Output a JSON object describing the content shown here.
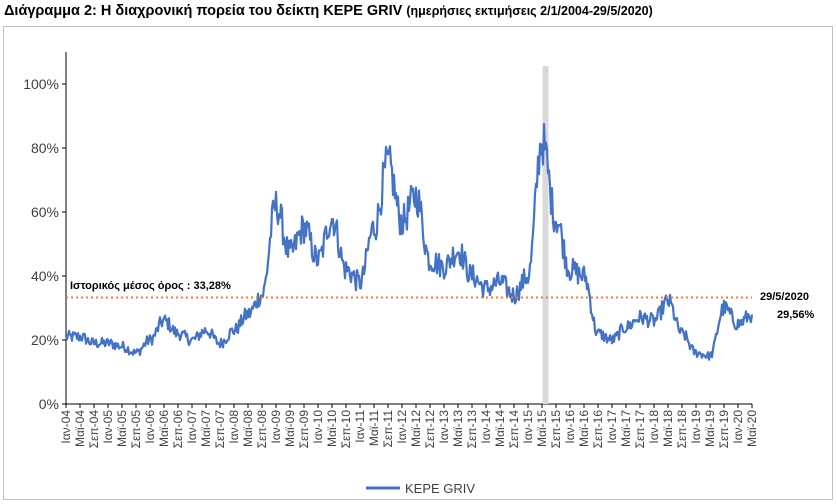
{
  "title": {
    "main": "Διάγραμμα 2: Η διαχρονική πορεία του δείκτη ΚΕΡΕ GRIV",
    "sub": "(ημερήσιες εκτιμήσεις 2/1/2004-29/5/2020)"
  },
  "chart_data": {
    "type": "line",
    "title": "Διάγραμμα 2: Η διαχρονική πορεία του δείκτη ΚΕΡΕ GRIV (ημερήσιες εκτιμήσεις 2/1/2004-29/5/2020)",
    "xlabel": "",
    "ylabel": "",
    "ylim": [
      0,
      110
    ],
    "y_ticks": [
      "0%",
      "20%",
      "40%",
      "60%",
      "80%",
      "100%"
    ],
    "y_tick_values": [
      0,
      20,
      40,
      60,
      80,
      100
    ],
    "x_tick_labels": [
      "Ιαν-04",
      "Μαϊ-04",
      "Σεπ-04",
      "Ιαν-05",
      "Μαϊ-05",
      "Σεπ-05",
      "Ιαν-06",
      "Μαϊ-06",
      "Σεπ-06",
      "Ιαν-07",
      "Μαϊ-07",
      "Σεπ-07",
      "Ιαν-08",
      "Μαϊ-08",
      "Σεπ-08",
      "Ιαν-09",
      "Μαϊ-09",
      "Σεπ-09",
      "Ιαν-10",
      "Μαϊ-10",
      "Σεπ-10",
      "Ιαν-11",
      "Μαϊ-11",
      "Σεπ-11",
      "Ιαν-12",
      "Μαϊ-12",
      "Σεπ-12",
      "Ιαν-13",
      "Μαϊ-13",
      "Σεπ-13",
      "Ιαν-14",
      "Μαϊ-14",
      "Σεπ-14",
      "Ιαν-15",
      "Μαϊ-15",
      "Σεπ-15",
      "Ιαν-16",
      "Μαϊ-16",
      "Σεπ-16",
      "Ιαν-17",
      "Μαϊ-17",
      "Σεπ-17",
      "Ιαν-18",
      "Μαϊ-18",
      "Σεπ-18",
      "Ιαν-19",
      "Μαϊ-19",
      "Σεπ-19",
      "Ιαν-20",
      "Μαϊ-20"
    ],
    "grid": false,
    "legend": {
      "position": "bottom",
      "entries": [
        "ΚΕΡΕ GRIV"
      ]
    },
    "series": [
      {
        "name": "ΚΕΡΕ GRIV",
        "color": "#4472c4",
        "x": [
          "Ιαν-04",
          "Μαϊ-04",
          "Σεπ-04",
          "Ιαν-05",
          "Μαϊ-05",
          "Σεπ-05",
          "Ιαν-06",
          "Μαϊ-06",
          "Σεπ-06",
          "Ιαν-07",
          "Μαϊ-07",
          "Σεπ-07",
          "Ιαν-08",
          "Μαϊ-08",
          "Σεπ-08",
          "Ιαν-09",
          "Μαϊ-09",
          "Σεπ-09",
          "Ιαν-10",
          "Μαϊ-10",
          "Σεπ-10",
          "Ιαν-11",
          "Μαϊ-11",
          "Σεπ-11",
          "Ιαν-12",
          "Μαϊ-12",
          "Σεπ-12",
          "Ιαν-13",
          "Μαϊ-13",
          "Σεπ-13",
          "Ιαν-14",
          "Μαϊ-14",
          "Σεπ-14",
          "Ιαν-15",
          "Μαϊ-15",
          "Σεπ-15",
          "Ιαν-16",
          "Μαϊ-16",
          "Σεπ-16",
          "Ιαν-17",
          "Μαϊ-17",
          "Σεπ-17",
          "Ιαν-18",
          "Μαϊ-18",
          "Σεπ-18",
          "Ιαν-19",
          "Μαϊ-19",
          "Σεπ-19",
          "Ιαν-20",
          "Μαϊ-20"
        ],
        "values": [
          21,
          21,
          19,
          19,
          18,
          16,
          20,
          26,
          22,
          20,
          23,
          19,
          23,
          28,
          34,
          62,
          47,
          55,
          45,
          58,
          42,
          38,
          55,
          75,
          57,
          65,
          45,
          43,
          48,
          40,
          36,
          38,
          34,
          40,
          82,
          58,
          42,
          40,
          22,
          20,
          24,
          27,
          26,
          32,
          22,
          16,
          15,
          30,
          25,
          28
        ]
      }
    ],
    "reference_lines": [
      {
        "label": "Ιστορικός μέσος όρος : 33,28%",
        "value": 33.28,
        "color": "#ed7d31",
        "style": "dotted"
      }
    ],
    "highlight_band": {
      "at": "Ιουν-15",
      "color": "#d9d9d9"
    },
    "annotations": [
      {
        "text": "29/5/2020",
        "x": "29/5/2020"
      },
      {
        "text": "29,56%",
        "value": 29.56
      }
    ]
  },
  "legend_label": "ΚΕΡΕ GRIV",
  "mean_label": "Ιστορικός μέσος όρος : 33,28%",
  "end_date_label": "29/5/2020",
  "end_value_label": "29,56%"
}
